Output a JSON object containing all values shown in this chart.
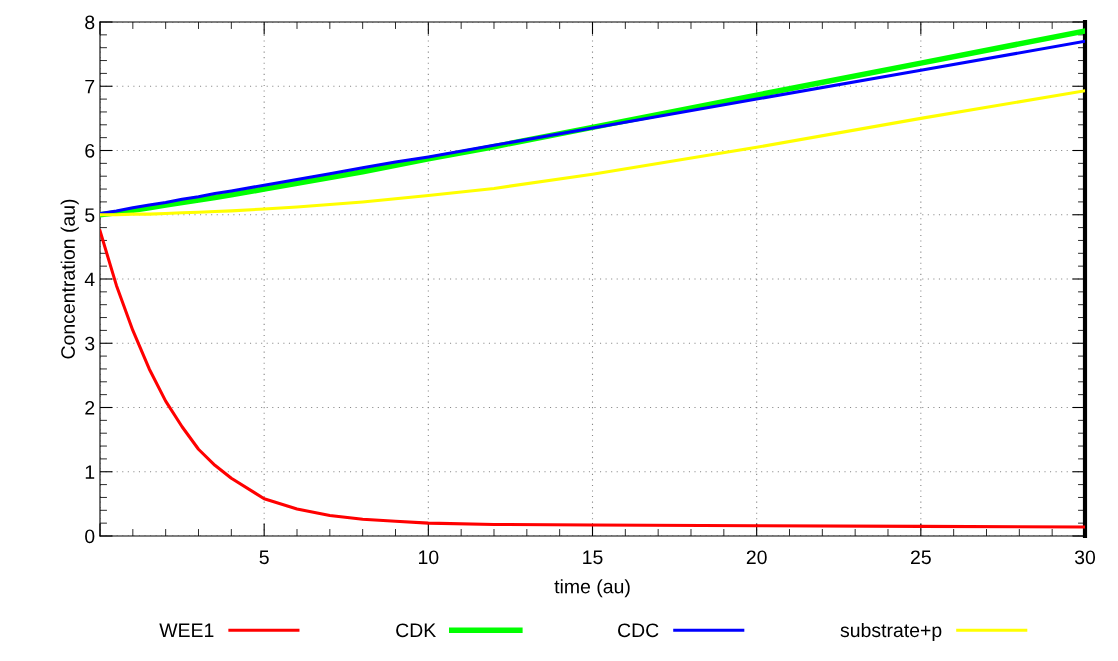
{
  "chart_data": {
    "type": "line",
    "xlabel": "time (au)",
    "ylabel": "Concentration (au)",
    "xlim": [
      0,
      30
    ],
    "xticks": [
      {
        "value": 0,
        "label": null
      },
      5,
      10,
      15,
      20,
      25,
      30
    ],
    "ylim": [
      0,
      8
    ],
    "yticks": [
      0,
      1,
      2,
      3,
      4,
      5,
      6,
      7,
      8
    ],
    "grid": true,
    "legend": "bottom",
    "marker": "none",
    "line_style": "solid",
    "x": [
      0,
      0.5,
      1,
      1.5,
      2,
      2.5,
      3,
      3.5,
      4,
      5,
      6,
      7,
      8,
      9,
      10,
      12,
      15,
      20,
      25,
      30
    ],
    "series": [
      {
        "name": "WEE1",
        "color": "#ff0000",
        "values": [
          4.75,
          3.9,
          3.2,
          2.6,
          2.1,
          1.7,
          1.35,
          1.1,
          0.9,
          0.58,
          0.42,
          0.32,
          0.26,
          0.23,
          0.2,
          0.18,
          0.17,
          0.16,
          0.15,
          0.14
        ]
      },
      {
        "name": "CDK",
        "color": "#00ff00",
        "values": [
          5.0,
          5.03,
          5.07,
          5.11,
          5.15,
          5.19,
          5.23,
          5.27,
          5.31,
          5.4,
          5.49,
          5.58,
          5.67,
          5.77,
          5.87,
          6.06,
          6.36,
          6.86,
          7.36,
          7.86
        ]
      },
      {
        "name": "CDC",
        "color": "#0000ff",
        "values": [
          5.02,
          5.06,
          5.11,
          5.15,
          5.19,
          5.24,
          5.28,
          5.33,
          5.37,
          5.46,
          5.55,
          5.64,
          5.73,
          5.82,
          5.9,
          6.08,
          6.35,
          6.8,
          7.25,
          7.7
        ]
      },
      {
        "name": "substrate+p",
        "color": "#ffff00",
        "values": [
          5.0,
          5.0,
          5.01,
          5.01,
          5.02,
          5.03,
          5.04,
          5.05,
          5.06,
          5.09,
          5.12,
          5.16,
          5.2,
          5.25,
          5.3,
          5.41,
          5.63,
          6.05,
          6.5,
          6.93
        ]
      }
    ]
  }
}
